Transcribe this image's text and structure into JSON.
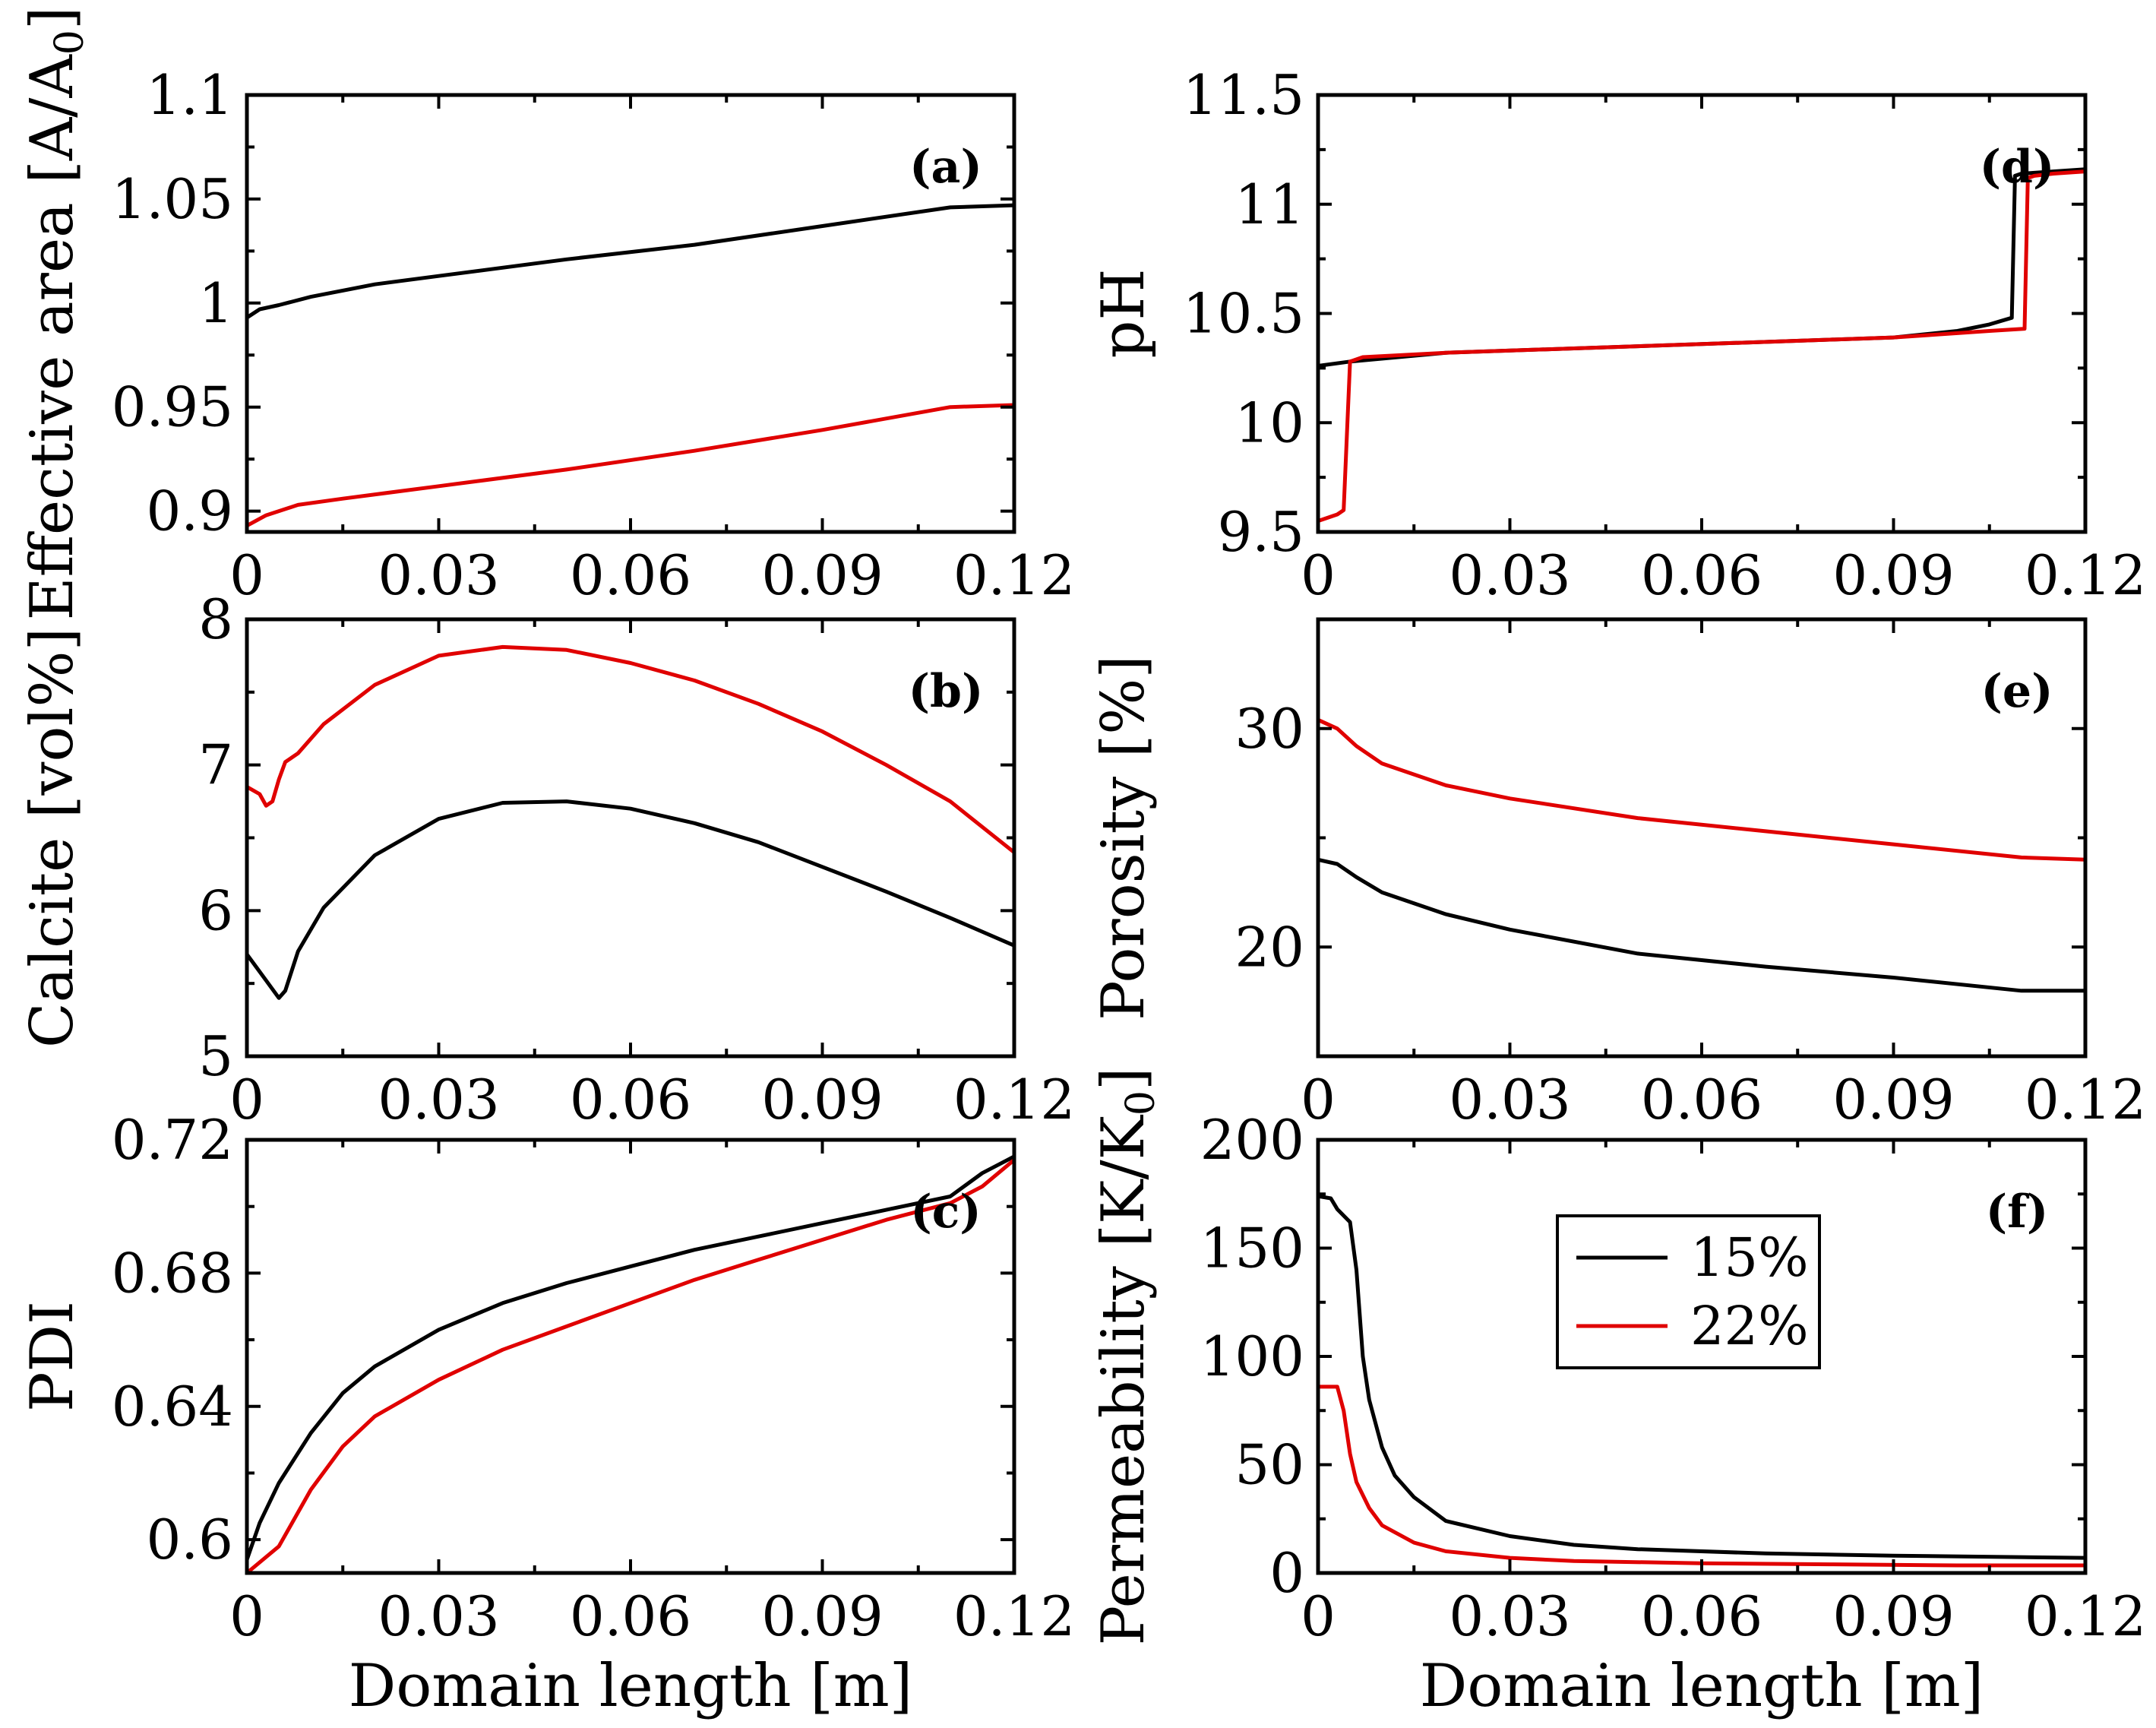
{
  "chart_data": [
    {
      "id": "a",
      "type": "line",
      "panel_label": "(a)",
      "xlabel": "",
      "ylabel_parts": [
        "Effective area [A/A",
        "0",
        "]"
      ],
      "xlim": [
        0,
        0.12
      ],
      "ylim": [
        0.89,
        1.1
      ],
      "xticks": [
        0,
        0.03,
        0.06,
        0.09,
        0.12
      ],
      "xtick_labels": [
        "0",
        "0.03",
        "0.06",
        "0.09",
        "0.12"
      ],
      "yticks": [
        0.9,
        0.95,
        1,
        1.05,
        1.1
      ],
      "ytick_labels": [
        "0.9",
        "0.95",
        "1",
        "1.05",
        "1.1"
      ],
      "series": [
        {
          "name": "15%",
          "color": "#000000",
          "x": [
            0,
            0.002,
            0.005,
            0.01,
            0.02,
            0.03,
            0.05,
            0.07,
            0.09,
            0.11,
            0.12
          ],
          "y": [
            0.993,
            0.997,
            0.999,
            1.003,
            1.009,
            1.013,
            1.021,
            1.028,
            1.037,
            1.046,
            1.047
          ]
        },
        {
          "name": "22%",
          "color": "#e00000",
          "x": [
            0,
            0.003,
            0.008,
            0.015,
            0.03,
            0.05,
            0.07,
            0.09,
            0.11,
            0.12
          ],
          "y": [
            0.893,
            0.898,
            0.903,
            0.906,
            0.912,
            0.92,
            0.929,
            0.939,
            0.95,
            0.951
          ]
        }
      ]
    },
    {
      "id": "b",
      "type": "line",
      "panel_label": "(b)",
      "xlabel": "",
      "ylabel_parts": [
        "Calcite [vol%]"
      ],
      "xlim": [
        0,
        0.12
      ],
      "ylim": [
        5,
        8
      ],
      "xticks": [
        0,
        0.03,
        0.06,
        0.09,
        0.12
      ],
      "xtick_labels": [
        "0",
        "0.03",
        "0.06",
        "0.09",
        "0.12"
      ],
      "yticks": [
        5,
        6,
        7,
        8
      ],
      "ytick_labels": [
        "5",
        "6",
        "7",
        "8"
      ],
      "series": [
        {
          "name": "15%",
          "color": "#000000",
          "x": [
            0,
            0.003,
            0.005,
            0.006,
            0.008,
            0.012,
            0.02,
            0.03,
            0.04,
            0.05,
            0.06,
            0.07,
            0.08,
            0.09,
            0.1,
            0.11,
            0.12
          ],
          "y": [
            5.7,
            5.52,
            5.4,
            5.45,
            5.72,
            6.02,
            6.38,
            6.63,
            6.74,
            6.75,
            6.7,
            6.6,
            6.47,
            6.3,
            6.13,
            5.95,
            5.76
          ]
        },
        {
          "name": "22%",
          "color": "#e00000",
          "x": [
            0,
            0.002,
            0.003,
            0.004,
            0.005,
            0.006,
            0.008,
            0.012,
            0.02,
            0.03,
            0.04,
            0.05,
            0.06,
            0.07,
            0.08,
            0.09,
            0.1,
            0.11,
            0.12
          ],
          "y": [
            6.85,
            6.8,
            6.72,
            6.75,
            6.9,
            7.02,
            7.08,
            7.28,
            7.55,
            7.75,
            7.81,
            7.79,
            7.7,
            7.58,
            7.42,
            7.23,
            7.0,
            6.75,
            6.4
          ]
        }
      ]
    },
    {
      "id": "c",
      "type": "line",
      "panel_label": "(c)",
      "xlabel": "Domain length [m]",
      "ylabel_parts": [
        "PDI"
      ],
      "xlim": [
        0,
        0.12
      ],
      "ylim": [
        0.59,
        0.72
      ],
      "xticks": [
        0,
        0.03,
        0.06,
        0.09,
        0.12
      ],
      "xtick_labels": [
        "0",
        "0.03",
        "0.06",
        "0.09",
        "0.12"
      ],
      "yticks": [
        0.6,
        0.64,
        0.68,
        0.72
      ],
      "ytick_labels": [
        "0.6",
        "0.64",
        "0.68",
        "0.72"
      ],
      "series": [
        {
          "name": "15%",
          "color": "#000000",
          "x": [
            0,
            0.002,
            0.005,
            0.01,
            0.015,
            0.02,
            0.03,
            0.04,
            0.05,
            0.06,
            0.07,
            0.08,
            0.09,
            0.1,
            0.11,
            0.115,
            0.12
          ],
          "y": [
            0.594,
            0.605,
            0.617,
            0.632,
            0.644,
            0.652,
            0.663,
            0.671,
            0.677,
            0.682,
            0.687,
            0.691,
            0.695,
            0.699,
            0.703,
            0.71,
            0.715
          ]
        },
        {
          "name": "22%",
          "color": "#e00000",
          "x": [
            0,
            0.005,
            0.01,
            0.015,
            0.02,
            0.03,
            0.04,
            0.05,
            0.06,
            0.07,
            0.08,
            0.09,
            0.1,
            0.11,
            0.115,
            0.12
          ],
          "y": [
            0.59,
            0.598,
            0.615,
            0.628,
            0.637,
            0.648,
            0.657,
            0.664,
            0.671,
            0.678,
            0.684,
            0.69,
            0.696,
            0.701,
            0.706,
            0.714
          ]
        }
      ]
    },
    {
      "id": "d",
      "type": "line",
      "panel_label": "(d)",
      "xlabel": "",
      "ylabel_parts": [
        "pH"
      ],
      "xlim": [
        0,
        0.12
      ],
      "ylim": [
        9.5,
        11.5
      ],
      "xticks": [
        0,
        0.03,
        0.06,
        0.09,
        0.12
      ],
      "xtick_labels": [
        "0",
        "0.03",
        "0.06",
        "0.09",
        "0.12"
      ],
      "yticks": [
        9.5,
        10,
        10.5,
        11,
        11.5
      ],
      "ytick_labels": [
        "9.5",
        "10",
        "10.5",
        "11",
        "11.5"
      ],
      "series": [
        {
          "name": "15%",
          "color": "#000000",
          "x": [
            0,
            0.005,
            0.02,
            0.04,
            0.06,
            0.08,
            0.09,
            0.1,
            0.105,
            0.1085,
            0.109,
            0.11,
            0.115,
            0.12
          ],
          "y": [
            10.26,
            10.28,
            10.32,
            10.34,
            10.36,
            10.38,
            10.39,
            10.42,
            10.45,
            10.48,
            11.13,
            11.14,
            11.15,
            11.16
          ]
        },
        {
          "name": "22%",
          "color": "#e00000",
          "x": [
            0,
            0.003,
            0.004,
            0.005,
            0.007,
            0.02,
            0.04,
            0.06,
            0.08,
            0.09,
            0.1,
            0.105,
            0.1105,
            0.111,
            0.112,
            0.115,
            0.12
          ],
          "y": [
            9.55,
            9.58,
            9.6,
            10.28,
            10.3,
            10.32,
            10.34,
            10.36,
            10.38,
            10.39,
            10.41,
            10.42,
            10.43,
            11.12,
            11.13,
            11.14,
            11.15
          ]
        }
      ]
    },
    {
      "id": "e",
      "type": "line",
      "panel_label": "(e)",
      "xlabel": "",
      "ylabel_parts": [
        "Porosity [%]"
      ],
      "xlim": [
        0,
        0.12
      ],
      "ylim": [
        15,
        35
      ],
      "xticks": [
        0,
        0.03,
        0.06,
        0.09,
        0.12
      ],
      "xtick_labels": [
        "0",
        "0.03",
        "0.06",
        "0.09",
        "0.12"
      ],
      "yticks": [
        20,
        30
      ],
      "ytick_labels": [
        "20",
        "30"
      ],
      "series": [
        {
          "name": "15%",
          "color": "#000000",
          "x": [
            0,
            0.003,
            0.006,
            0.01,
            0.02,
            0.03,
            0.05,
            0.07,
            0.09,
            0.11,
            0.12
          ],
          "y": [
            24.0,
            23.8,
            23.2,
            22.5,
            21.5,
            20.8,
            19.7,
            19.1,
            18.6,
            18.0,
            18.0
          ]
        },
        {
          "name": "22%",
          "color": "#e00000",
          "x": [
            0,
            0.003,
            0.006,
            0.01,
            0.02,
            0.03,
            0.05,
            0.07,
            0.09,
            0.11,
            0.12
          ],
          "y": [
            30.4,
            30.0,
            29.2,
            28.4,
            27.4,
            26.8,
            25.9,
            25.3,
            24.7,
            24.1,
            24.0
          ]
        }
      ]
    },
    {
      "id": "f",
      "type": "line",
      "panel_label": "(f)",
      "xlabel": "Domain length [m]",
      "ylabel_parts": [
        "Permeability [K/K",
        "0",
        "]"
      ],
      "xlim": [
        0,
        0.12
      ],
      "ylim": [
        0,
        200
      ],
      "xticks": [
        0,
        0.03,
        0.06,
        0.09,
        0.12
      ],
      "xtick_labels": [
        "0",
        "0.03",
        "0.06",
        "0.09",
        "0.12"
      ],
      "yticks": [
        0,
        50,
        100,
        150,
        200
      ],
      "ytick_labels": [
        "0",
        "50",
        "100",
        "150",
        "200"
      ],
      "legend": {
        "position": "upper-center",
        "entries": [
          "15%",
          "22%"
        ]
      },
      "series": [
        {
          "name": "15%",
          "color": "#000000",
          "x": [
            0,
            0.002,
            0.003,
            0.005,
            0.006,
            0.007,
            0.008,
            0.01,
            0.012,
            0.015,
            0.02,
            0.03,
            0.04,
            0.05,
            0.07,
            0.09,
            0.12
          ],
          "y": [
            174,
            173,
            168,
            162,
            140,
            100,
            80,
            58,
            45,
            35,
            24,
            17,
            13,
            11,
            9,
            8,
            7
          ]
        },
        {
          "name": "22%",
          "color": "#e00000",
          "x": [
            0,
            0.003,
            0.004,
            0.005,
            0.006,
            0.008,
            0.01,
            0.015,
            0.02,
            0.03,
            0.04,
            0.06,
            0.08,
            0.1,
            0.12
          ],
          "y": [
            86,
            86,
            75,
            55,
            42,
            30,
            22,
            14,
            10,
            7,
            5.5,
            4.5,
            4,
            3.5,
            3.5
          ]
        }
      ]
    }
  ],
  "legend": {
    "entries": [
      {
        "label": "15%",
        "color": "#000000"
      },
      {
        "label": "22%",
        "color": "#e00000"
      }
    ]
  }
}
